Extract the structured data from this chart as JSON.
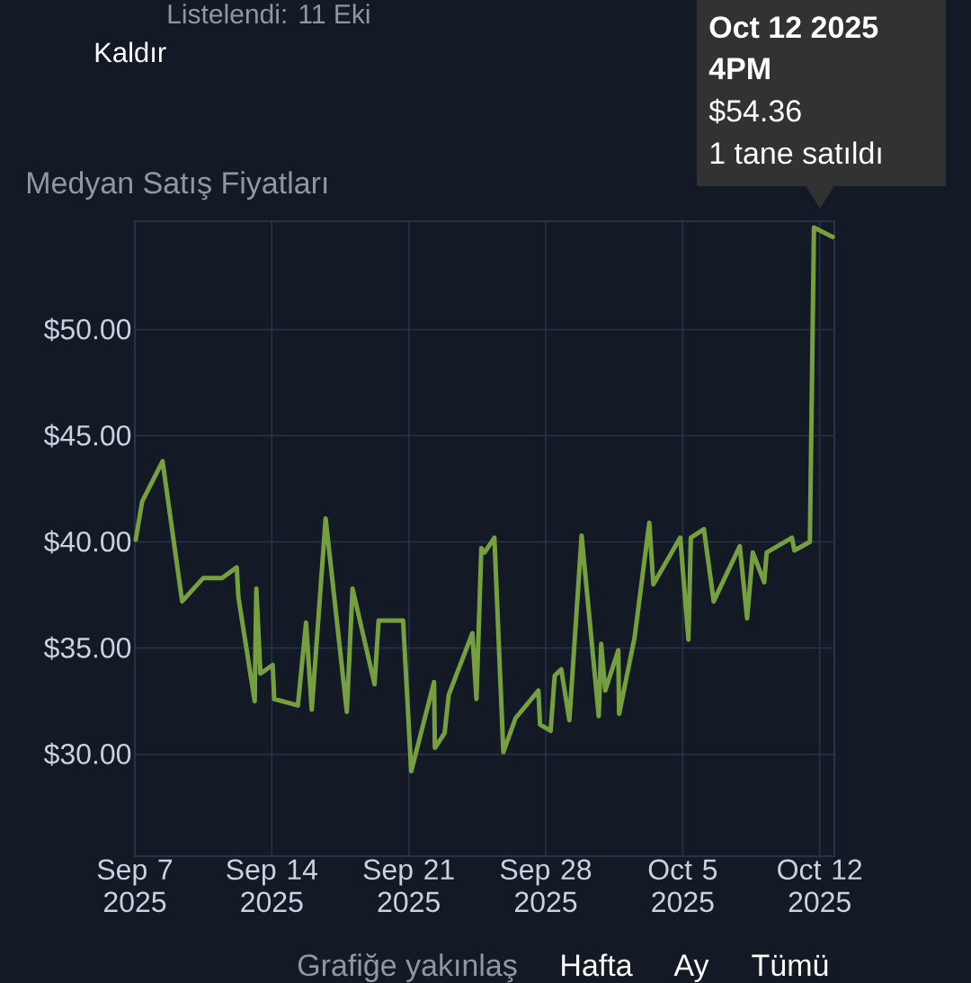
{
  "chart_data": {
    "type": "line",
    "title": "Medyan Satış Fiyatları",
    "x": [
      "2025-09-07T01:00",
      "2025-09-07T09:00",
      "2025-09-08T10:00",
      "2025-09-09T10:00",
      "2025-09-10T12:00",
      "2025-09-11T11:00",
      "2025-09-12T05:00",
      "2025-09-12T07:00",
      "2025-09-13T03:00",
      "2025-09-13T05:00",
      "2025-09-13T10:00",
      "2025-09-14T01:00",
      "2025-09-14T03:00",
      "2025-09-15T08:00",
      "2025-09-15T18:00",
      "2025-09-16T01:00",
      "2025-09-16T18:00",
      "2025-09-17T20:00",
      "2025-09-18T03:00",
      "2025-09-19T06:00",
      "2025-09-19T11:00",
      "2025-09-20T17:00",
      "2025-09-21T03:00",
      "2025-09-22T07:00",
      "2025-09-22T08:00",
      "2025-09-22T20:00",
      "2025-09-23T01:00",
      "2025-09-24T06:00",
      "2025-09-24T11:00",
      "2025-09-24T17:00",
      "2025-09-24T21:00",
      "2025-09-25T09:00",
      "2025-09-25T20:00",
      "2025-09-26T11:00",
      "2025-09-27T15:00",
      "2025-09-27T17:00",
      "2025-09-28T06:00",
      "2025-09-28T11:00",
      "2025-09-28T19:00",
      "2025-09-29T05:00",
      "2025-09-29T20:00",
      "2025-09-30T17:00",
      "2025-09-30T20:00",
      "2025-10-01T01:00",
      "2025-10-01T17:00",
      "2025-10-01T18:00",
      "2025-10-02T13:00",
      "2025-10-03T07:00",
      "2025-10-03T12:00",
      "2025-10-04T21:00",
      "2025-10-05T07:00",
      "2025-10-05T10:00",
      "2025-10-06T02:00",
      "2025-10-06T14:00",
      "2025-10-07T22:00",
      "2025-10-08T07:00",
      "2025-10-08T14:00",
      "2025-10-09T04:00",
      "2025-10-09T07:00",
      "2025-10-10T14:00",
      "2025-10-10T17:00",
      "2025-10-11T12:00",
      "2025-10-11T17:00",
      "2025-10-12T16:00"
    ],
    "series": [
      {
        "color": "#76a03f",
        "values": [
          40.1,
          41.9,
          43.8,
          37.2,
          38.3,
          38.3,
          38.8,
          37.4,
          32.5,
          37.8,
          33.8,
          34.2,
          32.6,
          32.3,
          36.2,
          32.1,
          41.1,
          32.0,
          37.8,
          33.3,
          36.3,
          36.3,
          29.2,
          33.4,
          30.3,
          31.0,
          32.8,
          35.7,
          32.6,
          39.7,
          39.5,
          40.2,
          30.1,
          31.7,
          33.0,
          31.4,
          31.1,
          33.7,
          34.0,
          31.6,
          40.3,
          31.8,
          35.2,
          33.0,
          34.9,
          31.9,
          35.5,
          40.9,
          38.0,
          40.2,
          35.4,
          40.2,
          40.6,
          37.2,
          39.8,
          36.4,
          39.5,
          38.1,
          39.5,
          40.2,
          39.6,
          40.0,
          54.8,
          54.36
        ]
      }
    ],
    "xlim": [
      "2025-09-07",
      "2025-10-12T18:00"
    ],
    "xticks": [
      {
        "value": "2025-09-07",
        "label": "Sep 7 2025"
      },
      {
        "value": "2025-09-14",
        "label": "Sep 14 2025"
      },
      {
        "value": "2025-09-21",
        "label": "Sep 21 2025"
      },
      {
        "value": "2025-09-28",
        "label": "Sep 28 2025"
      },
      {
        "value": "2025-10-05",
        "label": "Oct 5 2025"
      },
      {
        "value": "2025-10-12",
        "label": "Oct 12 2025"
      }
    ],
    "ylim": [
      25.2,
      55.1
    ],
    "yticks": [
      {
        "value": 30,
        "label": "$30.00"
      },
      {
        "value": 35,
        "label": "$35.00"
      },
      {
        "value": 40,
        "label": "$40.00"
      },
      {
        "value": 45,
        "label": "$45.00"
      },
      {
        "value": 50,
        "label": "$50.00"
      }
    ],
    "grid": true,
    "annotations": [
      "Listelendi: 11 Eki",
      "Kaldır",
      "Oct 12 2025",
      "4PM",
      "$54.36",
      "1 tane satıldı",
      "Grafiğe yakınlaş",
      "Hafta",
      "Ay",
      "Tümü"
    ]
  }
}
